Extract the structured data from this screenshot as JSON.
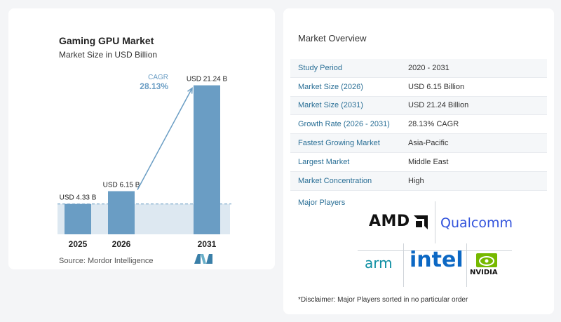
{
  "chart_data": {
    "type": "bar",
    "title": "Gaming GPU Market",
    "subtitle": "Market Size in USD Billion",
    "categories": [
      "2025",
      "2026",
      "2031"
    ],
    "values": [
      4.33,
      6.15,
      21.24
    ],
    "data_labels": [
      "USD 4.33 B",
      "USD 6.15 B",
      "USD 21.24 B"
    ],
    "cagr_label": "CAGR",
    "cagr_value": "28.13%",
    "bar_color": "#6a9dc4",
    "ylim": [
      0,
      22
    ],
    "reference_line": 4.33,
    "xlabel": "",
    "ylabel": ""
  },
  "source": "Source:  Mordor Intelligence",
  "overview": {
    "title": "Market Overview",
    "rows": [
      {
        "label": "Study Period",
        "value": "2020 - 2031"
      },
      {
        "label": "Market Size (2026)",
        "value": "USD 6.15 Billion"
      },
      {
        "label": "Market Size (2031)",
        "value": "USD 21.24 Billion"
      },
      {
        "label": "Growth Rate (2026 - 2031)",
        "value": "28.13% CAGR"
      },
      {
        "label": "Fastest Growing Market",
        "value": "Asia-Pacific"
      },
      {
        "label": "Largest Market",
        "value": "Middle East"
      },
      {
        "label": "Market Concentration",
        "value": "High"
      }
    ],
    "players_label": "Major Players",
    "players": [
      "AMD",
      "Qualcomm",
      "arm",
      "intel",
      "NVIDIA"
    ],
    "disclaimer": "*Disclaimer: Major Players sorted in no particular order"
  }
}
